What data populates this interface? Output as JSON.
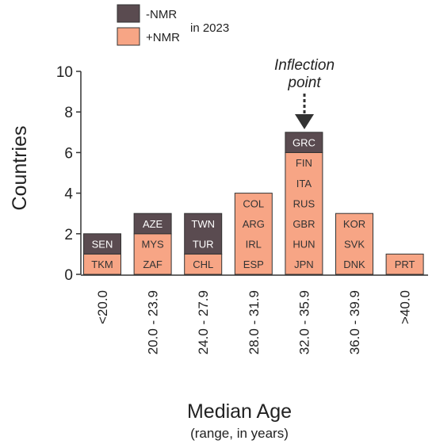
{
  "legend": {
    "items": [
      {
        "label": "-NMR",
        "color": "#5a4b50"
      },
      {
        "label": "+NMR",
        "color": "#f7a585"
      }
    ],
    "suffix": "in 2023"
  },
  "annotation": {
    "line1": "Inflection",
    "line2": "point",
    "category_index": 4
  },
  "chart_data": {
    "type": "bar",
    "stacked": true,
    "ylabel": "Countries",
    "xlabel": "Median Age",
    "xlabel_sub": "(range, in years)",
    "ylim": [
      0,
      10
    ],
    "yticks": [
      0,
      2,
      4,
      6,
      8,
      10
    ],
    "grid": false,
    "legend_position": "top-left",
    "categories": [
      "<20.0",
      "20.0 - 23.9",
      "24.0 - 27.9",
      "28.0 - 31.9",
      "32.0 - 35.9",
      "36.0 - 39.9",
      ">40.0"
    ],
    "series": [
      {
        "name": "+NMR",
        "color": "#f7a585",
        "values": [
          1,
          2,
          1,
          4,
          6,
          3,
          1
        ],
        "countries": [
          [
            "TKM"
          ],
          [
            "ZAF",
            "MYS"
          ],
          [
            "CHL"
          ],
          [
            "ESP",
            "IRL",
            "ARG",
            "COL"
          ],
          [
            "JPN",
            "HUN",
            "GBR",
            "RUS",
            "ITA",
            "FIN"
          ],
          [
            "DNK",
            "SVK",
            "KOR"
          ],
          [
            "PRT"
          ]
        ]
      },
      {
        "name": "-NMR",
        "color": "#5a4b50",
        "values": [
          1,
          1,
          2,
          0,
          1,
          0,
          0
        ],
        "countries": [
          [
            "SEN"
          ],
          [
            "AZE"
          ],
          [
            "TUR",
            "TWN"
          ],
          [],
          [
            "GRC"
          ],
          [],
          []
        ]
      }
    ]
  }
}
